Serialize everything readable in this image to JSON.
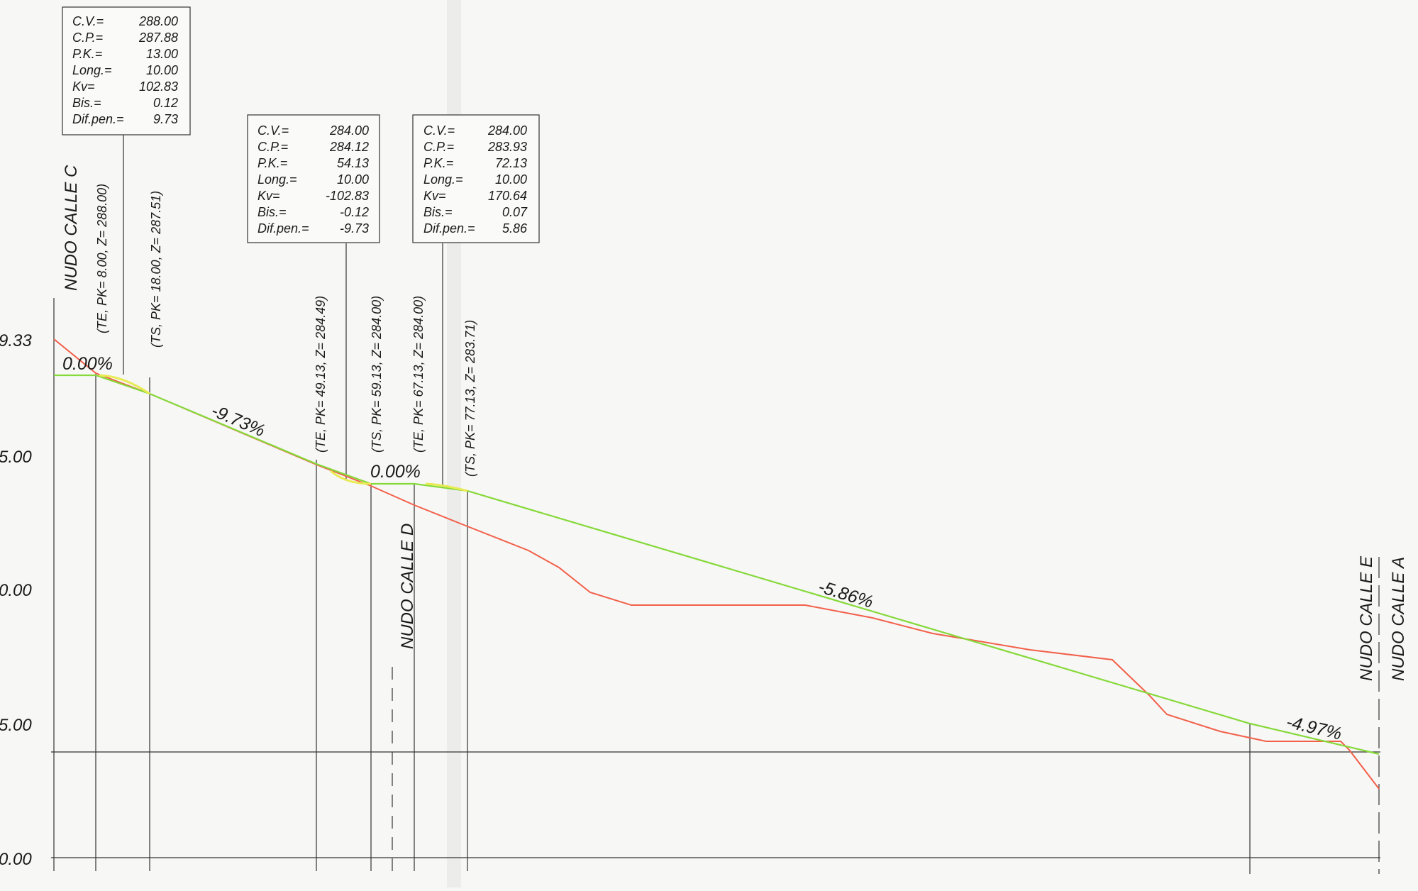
{
  "colors": {
    "paper": "#f7f7f5",
    "rasante": "#86d93a",
    "rasante_curve": "#e8ec52",
    "terrain": "#f2604a",
    "ink": "#1a1a1a"
  },
  "y_axis_labels": [
    "9.33",
    "5.00",
    "0.00",
    "5.00",
    "0.00"
  ],
  "grades": [
    "0.00%",
    "-9.73%",
    "0.00%",
    "-5.86%",
    "-4.97%"
  ],
  "vertical_labels": [
    "(TE, PK= 8.00, Z= 288.00)",
    "(TS, PK= 18.00, Z= 287.51)",
    "(TE, PK= 49.13, Z= 284.49)",
    "(TS, PK= 59.13, Z= 284.00)",
    "(TE, PK= 67.13, Z= 284.00)",
    "(TS, PK= 77.13, Z= 283.71)"
  ],
  "nodes": [
    "NUDO CALLE C",
    "NUDO CALLE D",
    "NUDO CALLE E",
    "NUDO CALLE A"
  ],
  "curve_boxes": [
    {
      "rows": [
        {
          "k": "C.V.=",
          "v": "288.00"
        },
        {
          "k": "C.P.=",
          "v": "287.88"
        },
        {
          "k": "P.K.=",
          "v": "13.00"
        },
        {
          "k": "Long.=",
          "v": "10.00"
        },
        {
          "k": "Kv=",
          "v": "102.83"
        },
        {
          "k": "Bis.=",
          "v": "0.12"
        },
        {
          "k": "Dif.pen.=",
          "v": "9.73"
        }
      ]
    },
    {
      "rows": [
        {
          "k": "C.V.=",
          "v": "284.00"
        },
        {
          "k": "C.P.=",
          "v": "284.12"
        },
        {
          "k": "P.K.=",
          "v": "54.13"
        },
        {
          "k": "Long.=",
          "v": "10.00"
        },
        {
          "k": "Kv=",
          "v": "-102.83"
        },
        {
          "k": "Bis.=",
          "v": "-0.12"
        },
        {
          "k": "Dif.pen.=",
          "v": "-9.73"
        }
      ]
    },
    {
      "rows": [
        {
          "k": "C.V.=",
          "v": "284.00"
        },
        {
          "k": "C.P.=",
          "v": "283.93"
        },
        {
          "k": "P.K.=",
          "v": "72.13"
        },
        {
          "k": "Long.=",
          "v": "10.00"
        },
        {
          "k": "Kv=",
          "v": "170.64"
        },
        {
          "k": "Bis.=",
          "v": "0.07"
        },
        {
          "k": "Dif.pen.=",
          "v": "5.86"
        }
      ]
    }
  ]
}
